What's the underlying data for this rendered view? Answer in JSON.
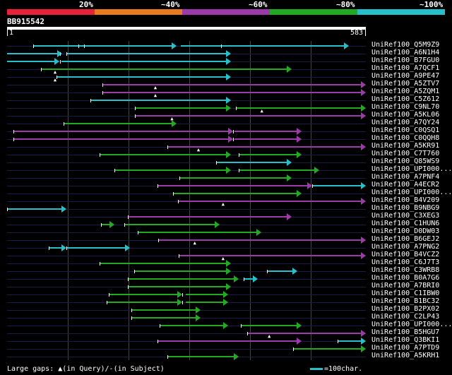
{
  "legend": {
    "labels": [
      "20%",
      "~40%",
      "~60%",
      "~80%",
      "~100%"
    ],
    "colors": [
      "#e8203a",
      "#e87a1f",
      "#9b3aa8",
      "#22aa22",
      "#25c0cc"
    ]
  },
  "query": {
    "id": "BB915542",
    "start": "1",
    "end": "583",
    "length": 583
  },
  "hits": [
    {
      "label": "UniRef100_Q5M9Z9",
      "c": "cyan",
      "segs": [
        [
          42,
          275
        ],
        [
          282,
          555
        ]
      ],
      "ticks": [
        42,
        116,
        125,
        348
      ],
      "ins": []
    },
    {
      "label": "UniRef100_A6N1H4",
      "c": "cyan",
      "segs": [
        [
          0,
          90
        ],
        [
          98,
          364
        ]
      ],
      "ticks": [
        86,
        96
      ],
      "ins": []
    },
    {
      "label": "UniRef100_B7FGU0",
      "c": "cyan",
      "segs": [
        [
          0,
          85
        ],
        [
          88,
          364
        ]
      ],
      "ticks": [
        86
      ],
      "ins": []
    },
    {
      "label": "UniRef100_A7QCF1",
      "c": "green",
      "segs": [
        [
          55,
          462
        ]
      ],
      "ticks": [
        55
      ],
      "ins": [
        79
      ]
    },
    {
      "label": "UniRef100_A9PE47",
      "c": "cyan",
      "segs": [
        [
          80,
          364
        ]
      ],
      "ticks": [
        80
      ],
      "ins": [
        79
      ]
    },
    {
      "label": "UniRef100_A5ZTV7",
      "c": "purple",
      "segs": [
        [
          155,
          583
        ]
      ],
      "ticks": [
        155
      ],
      "ins": [
        242
      ]
    },
    {
      "label": "UniRef100_A5ZQM1",
      "c": "purple",
      "segs": [
        [
          155,
          583
        ]
      ],
      "ticks": [
        155
      ],
      "ins": [
        242
      ]
    },
    {
      "label": "UniRef100_C5Z612",
      "c": "cyan",
      "segs": [
        [
          135,
          364
        ]
      ],
      "ticks": [
        135
      ],
      "ins": []
    },
    {
      "label": "UniRef100_C9NL70",
      "c": "green",
      "segs": [
        [
          208,
          364
        ],
        [
          372,
          583
        ]
      ],
      "ticks": [
        208,
        372
      ],
      "ins": [
        415
      ]
    },
    {
      "label": "UniRef100_A5KL06",
      "c": "purple",
      "segs": [
        [
          208,
          583
        ]
      ],
      "ticks": [
        208
      ],
      "ins": [
        269
      ]
    },
    {
      "label": "UniRef100_A7QY24",
      "c": "green",
      "segs": [
        [
          92,
          275
        ]
      ],
      "ticks": [
        92
      ],
      "ins": []
    },
    {
      "label": "UniRef100_C0QSQ1",
      "c": "purple",
      "segs": [
        [
          10,
          367
        ],
        [
          369,
          478
        ]
      ],
      "ticks": [
        10,
        367
      ],
      "ins": []
    },
    {
      "label": "UniRef100_C0QQH8",
      "c": "purple",
      "segs": [
        [
          10,
          367
        ],
        [
          369,
          478
        ]
      ],
      "ticks": [
        10,
        367
      ],
      "ins": []
    },
    {
      "label": "UniRef100_A5KR91",
      "c": "purple",
      "segs": [
        [
          260,
          583
        ]
      ],
      "ticks": [
        260
      ],
      "ins": [
        312
      ]
    },
    {
      "label": "UniRef100_C7T760",
      "c": "green",
      "segs": [
        [
          150,
          364
        ],
        [
          376,
          478
        ]
      ],
      "ticks": [
        150,
        376
      ],
      "ins": []
    },
    {
      "label": "UniRef100_Q85WS9",
      "c": "cyan",
      "segs": [
        [
          340,
          462
        ]
      ],
      "ticks": [
        340
      ],
      "ins": []
    },
    {
      "label": "UniRef100_UPI000...",
      "c": "green",
      "segs": [
        [
          175,
          364
        ],
        [
          376,
          507
        ]
      ],
      "ticks": [
        175,
        376
      ],
      "ins": []
    },
    {
      "label": "UniRef100_A7PNF4",
      "c": "green",
      "segs": [
        [
          280,
          462
        ]
      ],
      "ticks": [
        280
      ],
      "ins": []
    },
    {
      "label": "UniRef100_A4ECR2",
      "c": "mix",
      "segs": [
        [
          245,
          496
        ],
        [
          496,
          583
        ]
      ],
      "ticks": [
        245,
        496
      ],
      "ins": []
    },
    {
      "label": "UniRef100_UPI000...",
      "c": "green",
      "segs": [
        [
          270,
          478
        ]
      ],
      "ticks": [
        270
      ],
      "ins": []
    },
    {
      "label": "UniRef100_B4V209",
      "c": "purple",
      "segs": [
        [
          278,
          583
        ]
      ],
      "ticks": [
        278
      ],
      "ins": [
        352
      ]
    },
    {
      "label": "UniRef100_B9NBG9",
      "c": "cyan",
      "segs": [
        [
          0,
          96
        ]
      ],
      "ticks": [
        0
      ],
      "ins": []
    },
    {
      "label": "UniRef100_C3XEG3",
      "c": "purple",
      "segs": [
        [
          196,
          462
        ]
      ],
      "ticks": [
        196
      ],
      "ins": []
    },
    {
      "label": "UniRef100_C1HUN6",
      "c": "green",
      "segs": [
        [
          153,
          175
        ],
        [
          190,
          345
        ]
      ],
      "ticks": [
        153,
        190
      ],
      "ins": []
    },
    {
      "label": "UniRef100_D0DW03",
      "c": "green",
      "segs": [
        [
          212,
          413
        ]
      ],
      "ticks": [
        212
      ],
      "ins": []
    },
    {
      "label": "UniRef100_B6GEJ2",
      "c": "purple",
      "segs": [
        [
          246,
          583
        ]
      ],
      "ticks": [
        246
      ],
      "ins": [
        306
      ]
    },
    {
      "label": "UniRef100_A7PNG2",
      "c": "mix",
      "segs": [
        [
          68,
          96
        ],
        [
          96,
          200
        ]
      ],
      "ticks": [
        68,
        96
      ],
      "ins": []
    },
    {
      "label": "UniRef100_B4VCZ2",
      "c": "purple",
      "segs": [
        [
          279,
          583
        ]
      ],
      "ticks": [
        279
      ],
      "ins": [
        352
      ]
    },
    {
      "label": "UniRef100_C6J7T3",
      "c": "green",
      "segs": [
        [
          150,
          364
        ]
      ],
      "ticks": [
        150
      ],
      "ins": []
    },
    {
      "label": "UniRef100_C3WRB8",
      "c": "mix",
      "segs": [
        [
          207,
          364
        ],
        [
          422,
          472
        ]
      ],
      "ticks": [
        207,
        422
      ],
      "ins": []
    },
    {
      "label": "UniRef100_B0A7G6",
      "c": "mix",
      "segs": [
        [
          196,
          376
        ],
        [
          384,
          407
        ]
      ],
      "ticks": [
        196,
        384
      ],
      "ins": []
    },
    {
      "label": "UniRef100_A7BRI0",
      "c": "green",
      "segs": [
        [
          196,
          364
        ]
      ],
      "ticks": [
        196
      ],
      "ins": []
    },
    {
      "label": "UniRef100_C1IBW0",
      "c": "green",
      "segs": [
        [
          165,
          285
        ],
        [
          290,
          359
        ]
      ],
      "ticks": [
        165,
        285
      ],
      "ins": []
    },
    {
      "label": "UniRef100_B1BC32",
      "c": "green",
      "segs": [
        [
          162,
          285
        ],
        [
          290,
          359
        ]
      ],
      "ticks": [
        162,
        285
      ],
      "ins": []
    },
    {
      "label": "UniRef100_B2PX02",
      "c": "green",
      "segs": [
        [
          202,
          315
        ]
      ],
      "ticks": [
        202
      ],
      "ins": []
    },
    {
      "label": "UniRef100_C2LP43",
      "c": "green",
      "segs": [
        [
          202,
          315
        ]
      ],
      "ticks": [
        202
      ],
      "ins": []
    },
    {
      "label": "UniRef100_UPI000...",
      "c": "green",
      "segs": [
        [
          248,
          359
        ],
        [
          380,
          478
        ]
      ],
      "ticks": [
        248,
        380
      ],
      "ins": []
    },
    {
      "label": "UniRef100_B5HGU7",
      "c": "purple",
      "segs": [
        [
          390,
          583
        ]
      ],
      "ticks": [
        390
      ],
      "ins": [
        427
      ]
    },
    {
      "label": "UniRef100_Q3BKI1",
      "c": "mix",
      "segs": [
        [
          245,
          478
        ],
        [
          537,
          583
        ]
      ],
      "ticks": [
        245,
        537
      ],
      "ins": []
    },
    {
      "label": "UniRef100_A7PTD9",
      "c": "green",
      "segs": [
        [
          465,
          583
        ]
      ],
      "ticks": [
        465
      ],
      "ins": []
    },
    {
      "label": "UniRef100_A5KRH1",
      "c": "green",
      "segs": [
        [
          260,
          376
        ]
      ],
      "ticks": [
        260
      ],
      "ins": []
    }
  ],
  "footer": {
    "gap_text": "Large gaps:",
    "gap_query_symbol": "▲",
    "gap_query_text": "(in Query)/",
    "gap_subject_symbol": "-",
    "gap_subject_text": "(in Subject)",
    "scale_text": "=100char."
  }
}
